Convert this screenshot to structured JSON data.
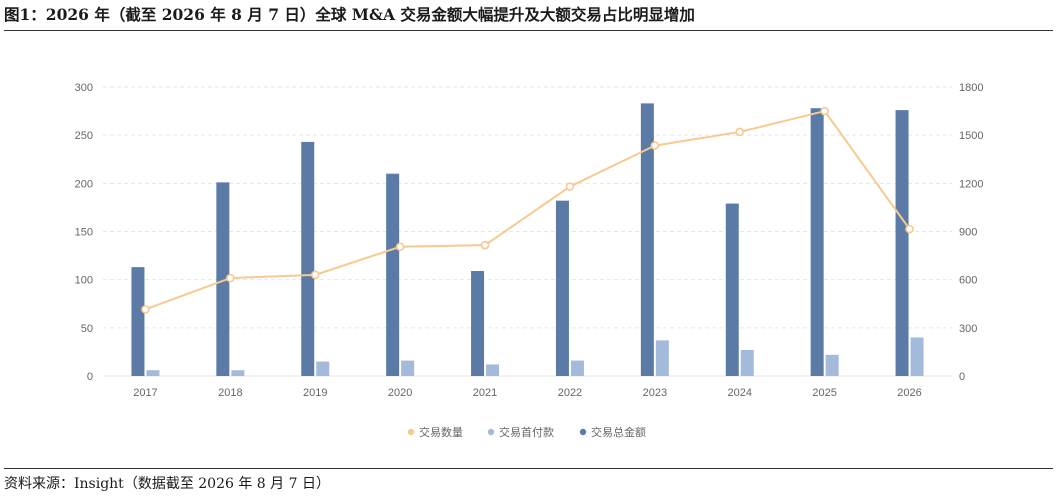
{
  "title": "图1：2026 年（截至 2026 年 8 月 7 日）全球 M&A 交易金额大幅提升及大额交易占比明显增加",
  "source": "资料来源：Insight（数据截至 2026 年 8 月 7 日）",
  "colors": {
    "total_bar": "#5B7BA6",
    "first_payment_bar": "#A3BADA",
    "count_line": "#F7C98F",
    "grid": "#E6E6E6"
  },
  "chart_data": {
    "type": "bar",
    "categories": [
      "2017",
      "2018",
      "2019",
      "2020",
      "2021",
      "2022",
      "2023",
      "2024",
      "2025",
      "2026"
    ],
    "left_axis": {
      "ylim": [
        0,
        300
      ],
      "ticks": [
        "0",
        "50",
        "100",
        "150",
        "200",
        "250",
        "300"
      ]
    },
    "right_axis": {
      "ylim": [
        0,
        1800
      ],
      "ticks": [
        "0",
        "300",
        "600",
        "900",
        "1200",
        "1500",
        "1800"
      ]
    },
    "grid": true,
    "legend_position": "bottom",
    "series": [
      {
        "name": "交易总金额",
        "type": "bar",
        "axis": "left",
        "values": [
          113,
          201,
          243,
          210,
          109,
          182,
          283,
          179,
          278,
          276
        ]
      },
      {
        "name": "交易首付款",
        "type": "bar",
        "axis": "left",
        "values": [
          6,
          6,
          15,
          16,
          12,
          16,
          37,
          27,
          22,
          40
        ]
      },
      {
        "name": "交易数量",
        "type": "line",
        "axis": "right",
        "values": [
          415,
          610,
          630,
          805,
          815,
          1180,
          1435,
          1520,
          1650,
          915
        ]
      }
    ],
    "legend": [
      "交易数量",
      "交易首付款",
      "交易总金额"
    ]
  }
}
